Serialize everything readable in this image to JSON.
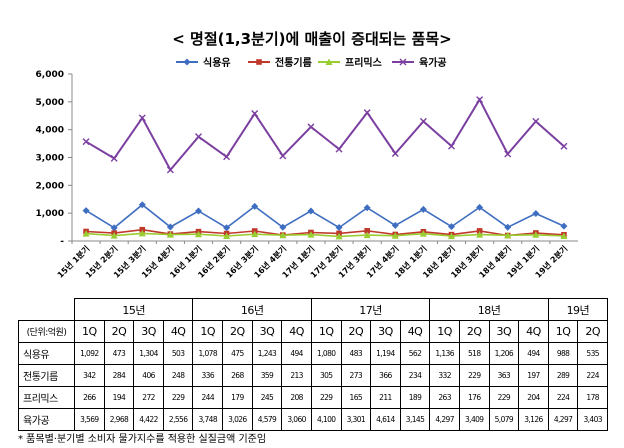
{
  "title": "< 명절(1,3분기)에 매출이 증대되는 품목>",
  "footnote": "* 품목별·분기별 소비자 물가지수를 적용한 실질금액 기준임",
  "chart_data": {
    "type": "line",
    "x": [
      "15년 1분기",
      "15년 2분기",
      "15년 3분기",
      "15년 4분기",
      "16년 1분기",
      "16년 2분기",
      "16년 3분기",
      "16년 4분기",
      "17년 1분기",
      "17년 2분기",
      "17년 3분기",
      "17년 4분기",
      "18년 1분기",
      "18년 2분기",
      "18년 3분기",
      "18년 4분기",
      "19년 1분기",
      "19년 2분기"
    ],
    "yticks": [
      "-",
      "1,000",
      "2,000",
      "3,000",
      "4,000",
      "5,000",
      "6,000"
    ],
    "ylim": [
      0,
      6000
    ],
    "legend_position": "top",
    "series": [
      {
        "name": "식용유",
        "color": "#3F6EC0",
        "marker": "diamond",
        "values": [
          1092,
          473,
          1304,
          503,
          1078,
          475,
          1243,
          494,
          1080,
          483,
          1194,
          562,
          1136,
          518,
          1206,
          494,
          988,
          535
        ]
      },
      {
        "name": "전통기름",
        "color": "#C0392B",
        "marker": "square",
        "values": [
          342,
          284,
          406,
          248,
          336,
          268,
          359,
          213,
          305,
          273,
          366,
          234,
          332,
          229,
          363,
          197,
          289,
          224
        ]
      },
      {
        "name": "프리믹스",
        "color": "#9ACD32",
        "marker": "triangle",
        "values": [
          266,
          194,
          272,
          229,
          244,
          179,
          245,
          208,
          229,
          165,
          211,
          189,
          263,
          176,
          229,
          204,
          224,
          178
        ]
      },
      {
        "name": "육가공",
        "color": "#7B3FA0",
        "marker": "x",
        "values": [
          3569,
          2968,
          4422,
          2556,
          3748,
          3026,
          4579,
          3060,
          4100,
          3301,
          4614,
          3145,
          4297,
          3409,
          5079,
          3126,
          4297,
          3403
        ]
      }
    ]
  },
  "table": {
    "unit_label": "(단위:억원)",
    "years": [
      "15년",
      "16년",
      "17년",
      "18년",
      "19년"
    ],
    "quarters": [
      "1Q",
      "2Q",
      "3Q",
      "4Q",
      "1Q",
      "2Q",
      "3Q",
      "4Q",
      "1Q",
      "2Q",
      "3Q",
      "4Q",
      "1Q",
      "2Q",
      "3Q",
      "4Q",
      "1Q",
      "2Q"
    ],
    "rows": [
      {
        "label": "식용유",
        "values": [
          "1,092",
          "473",
          "1,304",
          "503",
          "1,078",
          "475",
          "1,243",
          "494",
          "1,080",
          "483",
          "1,194",
          "562",
          "1,136",
          "518",
          "1,206",
          "494",
          "988",
          "535"
        ]
      },
      {
        "label": "전통기름",
        "values": [
          "342",
          "284",
          "406",
          "248",
          "336",
          "268",
          "359",
          "213",
          "305",
          "273",
          "366",
          "234",
          "332",
          "229",
          "363",
          "197",
          "289",
          "224"
        ]
      },
      {
        "label": "프리믹스",
        "values": [
          "266",
          "194",
          "272",
          "229",
          "244",
          "179",
          "245",
          "208",
          "229",
          "165",
          "211",
          "189",
          "263",
          "176",
          "229",
          "204",
          "224",
          "178"
        ]
      },
      {
        "label": "육가공",
        "values": [
          "3,569",
          "2,968",
          "4,422",
          "2,556",
          "3,748",
          "3,026",
          "4,579",
          "3,060",
          "4,100",
          "3,301",
          "4,614",
          "3,145",
          "4,297",
          "3,409",
          "5,079",
          "3,126",
          "4,297",
          "3,403"
        ]
      }
    ]
  }
}
